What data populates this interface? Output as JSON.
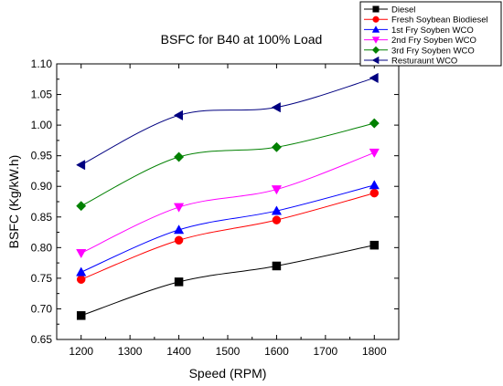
{
  "chart_data": {
    "type": "line",
    "title": "BSFC for B40 at 100% Load",
    "xlabel": "Speed (RPM)",
    "ylabel": "BSFC (Kg/kW.h)",
    "xlim": [
      1150,
      1850
    ],
    "ylim": [
      0.65,
      1.1
    ],
    "x_ticks": [
      "1200",
      "1300",
      "1400",
      "1500",
      "1600",
      "1700",
      "1800"
    ],
    "y_ticks": [
      "0.65",
      "0.70",
      "0.75",
      "0.80",
      "0.85",
      "0.90",
      "0.95",
      "1.00",
      "1.05",
      "1.10"
    ],
    "x": [
      1200,
      1400,
      1600,
      1800
    ],
    "legend_position": "top-right",
    "grid": false,
    "series": [
      {
        "name": "Diesel",
        "values": [
          0.689,
          0.744,
          0.77,
          0.804
        ],
        "color": "#000000",
        "marker": "square"
      },
      {
        "name": "Fresh Soybean Biodiesel",
        "values": [
          0.748,
          0.812,
          0.845,
          0.889
        ],
        "color": "#ff0000",
        "marker": "circle"
      },
      {
        "name": "1st Fry Soyben WCO",
        "values": [
          0.76,
          0.829,
          0.86,
          0.902
        ],
        "color": "#0000ff",
        "marker": "triangle-up"
      },
      {
        "name": "2nd Fry Soyben WCO",
        "values": [
          0.791,
          0.866,
          0.895,
          0.955
        ],
        "color": "#ff00ff",
        "marker": "triangle-down"
      },
      {
        "name": "3rd Fry Soyben WCO",
        "values": [
          0.868,
          0.948,
          0.964,
          1.003
        ],
        "color": "#008000",
        "marker": "diamond"
      },
      {
        "name": "Resturaunt WCO",
        "values": [
          0.935,
          1.016,
          1.029,
          1.077
        ],
        "color": "#000080",
        "marker": "triangle-left"
      }
    ]
  }
}
